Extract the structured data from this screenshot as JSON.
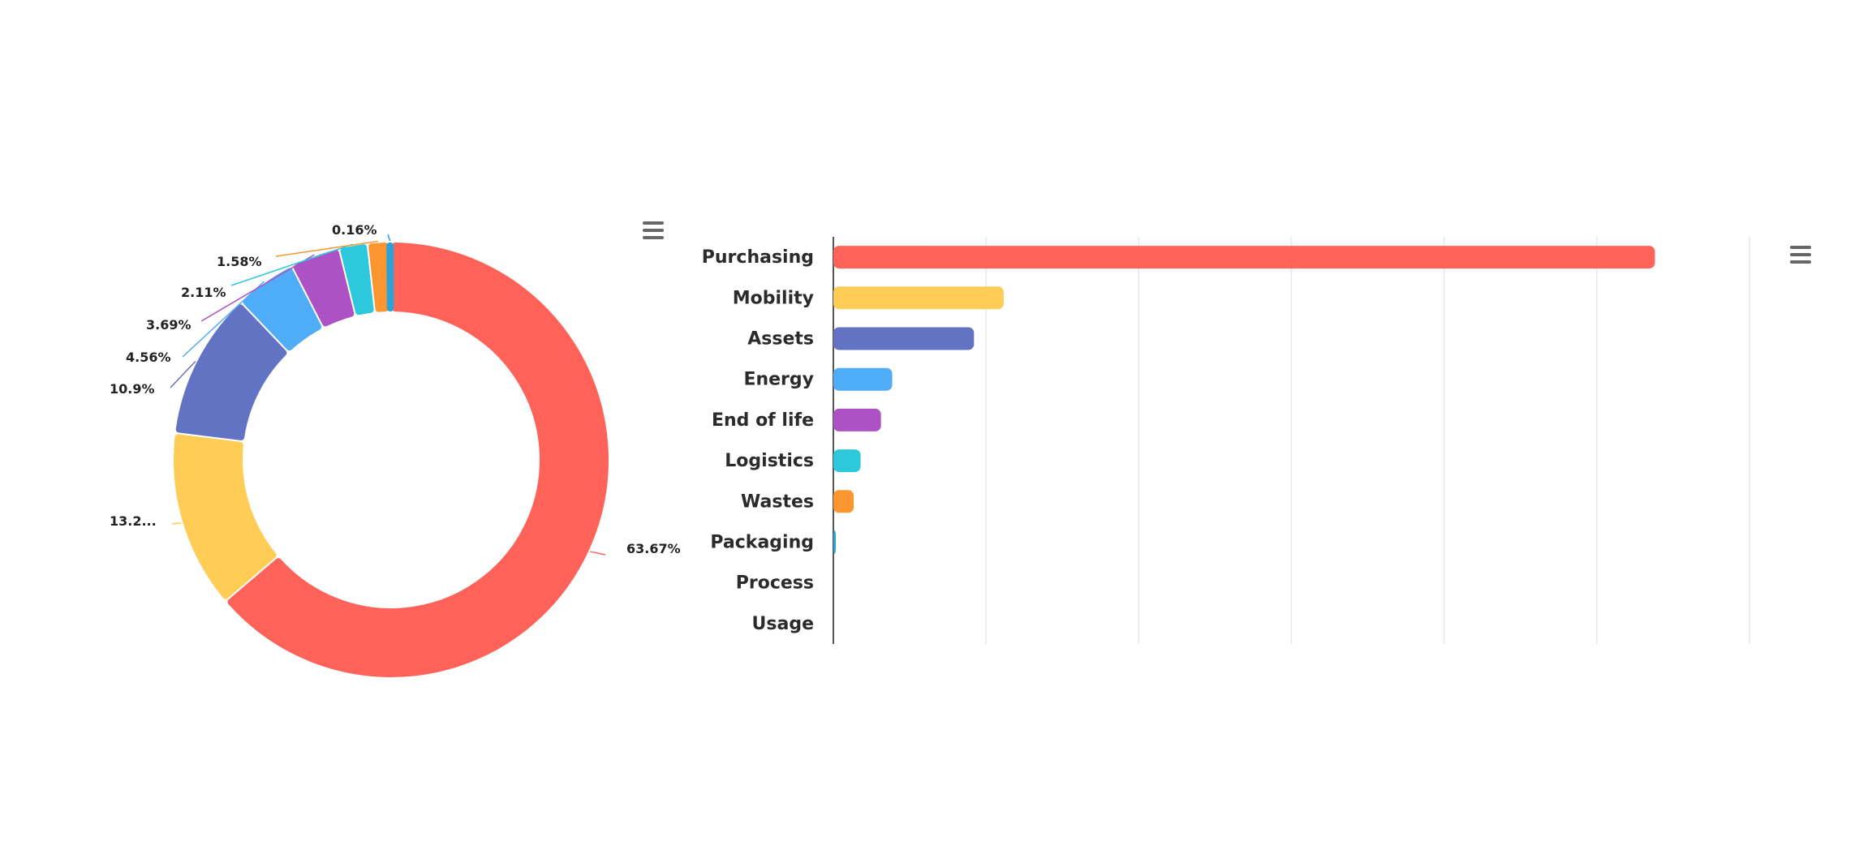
{
  "chart_data": [
    {
      "type": "pie",
      "variant": "donut",
      "title": "",
      "slices": [
        {
          "label": "Purchasing",
          "value": 63.67,
          "display": "63.67%",
          "color": "#ff6259"
        },
        {
          "label": "Mobility",
          "value": 13.2,
          "display": "13.2...",
          "color": "#ffcc55"
        },
        {
          "label": "Assets",
          "value": 10.9,
          "display": "10.9%",
          "color": "#6373c4"
        },
        {
          "label": "Energy",
          "value": 4.56,
          "display": "4.56%",
          "color": "#4facf7"
        },
        {
          "label": "End of life",
          "value": 3.69,
          "display": "3.69%",
          "color": "#ad52c4"
        },
        {
          "label": "Logistics",
          "value": 2.11,
          "display": "2.11%",
          "color": "#2ec8dc"
        },
        {
          "label": "Wastes",
          "value": 1.58,
          "display": "1.58%",
          "color": "#fb9530"
        },
        {
          "label": "Packaging",
          "value": 0.16,
          "display": "0.16%",
          "color": "#2ba3d8"
        }
      ],
      "legend": "none"
    },
    {
      "type": "bar",
      "orientation": "horizontal",
      "title": "",
      "xlabel": "",
      "ylabel": "",
      "categories": [
        "Purchasing",
        "Mobility",
        "Assets",
        "Energy",
        "End of life",
        "Logistics",
        "Wastes",
        "Packaging",
        "Process",
        "Usage"
      ],
      "values": [
        63.67,
        13.2,
        10.9,
        4.56,
        3.69,
        2.11,
        1.58,
        0.16,
        0,
        0
      ],
      "colors": [
        "#ff6259",
        "#ffcc55",
        "#6373c4",
        "#4facf7",
        "#ad52c4",
        "#2ec8dc",
        "#fb9530",
        "#2ba3d8",
        "#999999",
        "#999999"
      ],
      "xlim": [
        0,
        71
      ],
      "grid": true,
      "gridlines": 6,
      "tick_labels_shown": false,
      "legend": "none"
    }
  ],
  "toolbar": {
    "menu_icon": "hamburger-menu-icon"
  }
}
